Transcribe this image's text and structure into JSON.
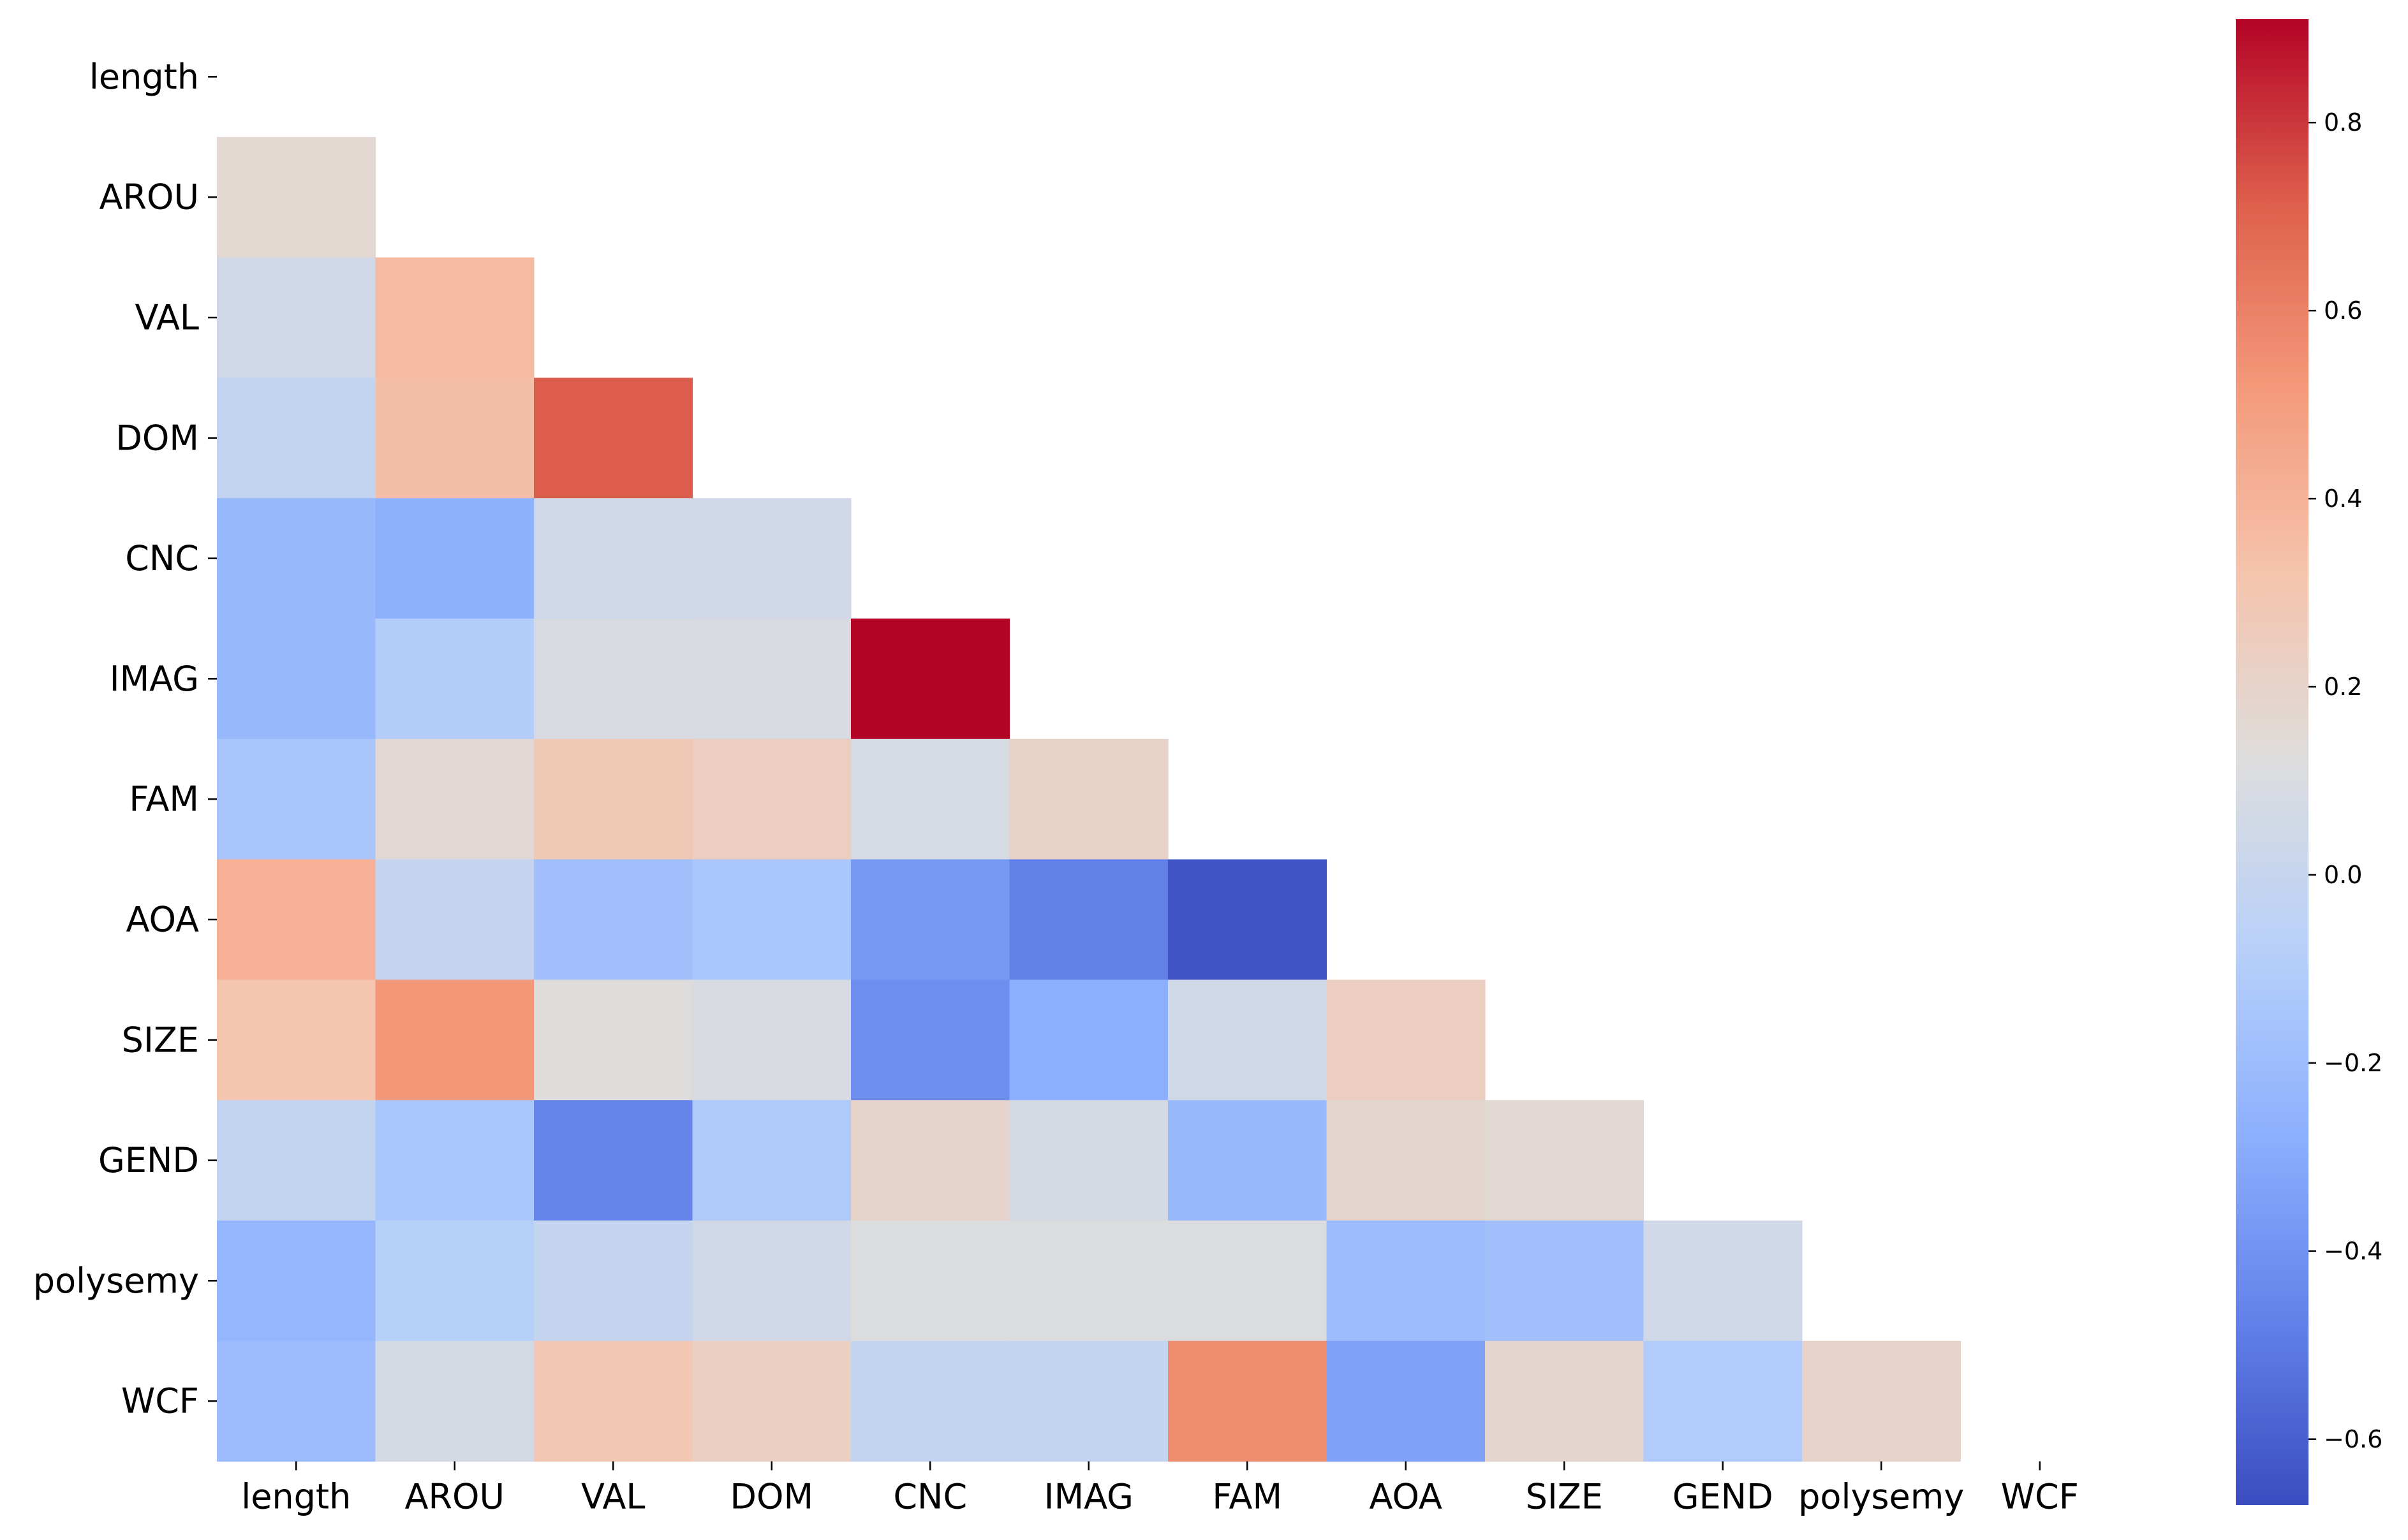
{
  "chart_data": {
    "type": "heatmap",
    "variant": "lower-triangle correlation matrix",
    "variables": [
      "length",
      "AROU",
      "VAL",
      "DOM",
      "CNC",
      "IMAG",
      "FAM",
      "AOA",
      "SIZE",
      "GEND",
      "polysemy",
      "WCF"
    ],
    "x_tick_labels": [
      "length",
      "AROU",
      "VAL",
      "DOM",
      "CNC",
      "IMAG",
      "FAM",
      "AOA",
      "SIZE",
      "GEND",
      "polysemy",
      "WCF"
    ],
    "y_tick_labels": [
      "length",
      "AROU",
      "VAL",
      "DOM",
      "CNC",
      "IMAG",
      "FAM",
      "AOA",
      "SIZE",
      "GEND",
      "polysemy",
      "WCF"
    ],
    "matrix": [
      [
        null,
        null,
        null,
        null,
        null,
        null,
        null,
        null,
        null,
        null,
        null,
        null
      ],
      [
        0.17,
        null,
        null,
        null,
        null,
        null,
        null,
        null,
        null,
        null,
        null,
        null
      ],
      [
        0.05,
        0.36,
        null,
        null,
        null,
        null,
        null,
        null,
        null,
        null,
        null,
        null
      ],
      [
        -0.02,
        0.34,
        0.72,
        null,
        null,
        null,
        null,
        null,
        null,
        null,
        null,
        null
      ],
      [
        -0.22,
        -0.27,
        0.04,
        0.05,
        null,
        null,
        null,
        null,
        null,
        null,
        null,
        null
      ],
      [
        -0.22,
        -0.1,
        0.09,
        0.09,
        0.91,
        null,
        null,
        null,
        null,
        null,
        null,
        null
      ],
      [
        -0.15,
        0.16,
        0.28,
        0.24,
        0.08,
        0.21,
        null,
        null,
        null,
        null,
        null,
        null
      ],
      [
        0.41,
        -0.01,
        -0.18,
        -0.14,
        -0.38,
        -0.48,
        -0.64,
        null,
        null,
        null,
        null,
        null
      ],
      [
        0.31,
        0.52,
        0.13,
        0.09,
        -0.42,
        -0.28,
        0.05,
        0.24,
        null,
        null,
        null,
        null
      ],
      [
        -0.02,
        -0.14,
        -0.46,
        -0.12,
        0.19,
        0.07,
        -0.22,
        0.18,
        0.16,
        null,
        null,
        null
      ],
      [
        -0.24,
        -0.08,
        -0.01,
        0.05,
        0.11,
        0.11,
        0.11,
        -0.21,
        -0.18,
        0.05,
        null,
        null
      ],
      [
        -0.21,
        0.07,
        0.29,
        0.23,
        -0.02,
        -0.02,
        0.56,
        -0.34,
        0.18,
        -0.11,
        0.2,
        null
      ]
    ],
    "colormap": "coolwarm",
    "vmin": -0.67,
    "vmax": 0.91,
    "colorbar": {
      "ticks": [
        0.8,
        0.6,
        0.4,
        0.2,
        0.0,
        -0.2,
        -0.4,
        -0.6
      ],
      "tick_labels": [
        "0.8",
        "0.6",
        "0.4",
        "0.2",
        "0.0",
        "−0.2",
        "−0.4",
        "−0.6"
      ],
      "placement": "right"
    },
    "title": "",
    "xlabel": "",
    "ylabel": ""
  }
}
